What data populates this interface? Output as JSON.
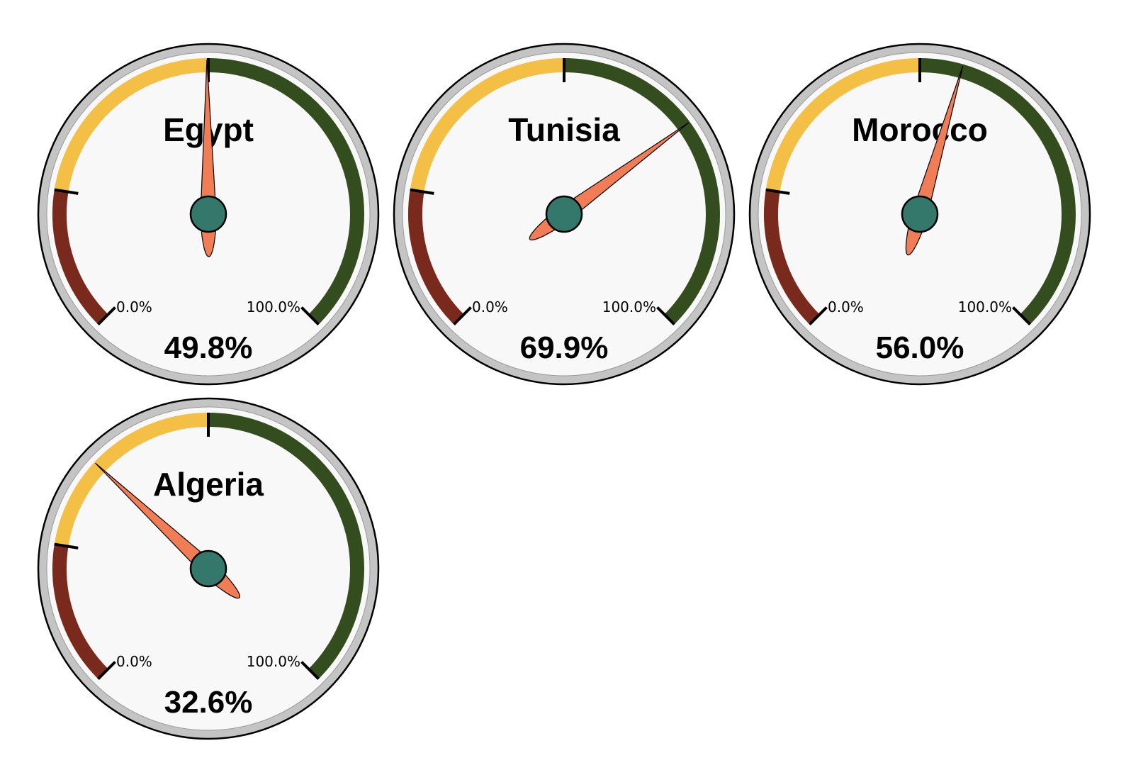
{
  "chart_data": {
    "type": "gauge",
    "min": 0,
    "max": 100,
    "min_label": "0.0%",
    "max_label": "100.0%",
    "bands": [
      {
        "from": 0,
        "to": 20,
        "color": "#7a2a1c"
      },
      {
        "from": 20,
        "to": 50,
        "color": "#f4bf45"
      },
      {
        "from": 50,
        "to": 100,
        "color": "#334d1f"
      }
    ],
    "gauges": [
      {
        "name": "Egypt",
        "value": 49.8,
        "value_label": "49.8%"
      },
      {
        "name": "Tunisia",
        "value": 69.9,
        "value_label": "69.9%"
      },
      {
        "name": "Morocco",
        "value": 56.0,
        "value_label": "56.0%"
      },
      {
        "name": "Algeria",
        "value": 32.6,
        "value_label": "32.6%"
      }
    ]
  },
  "colors": {
    "face": "#f8f8f8",
    "bezel": "#c4c4c4",
    "needle": "#f07d55",
    "hub": "#33786a"
  }
}
